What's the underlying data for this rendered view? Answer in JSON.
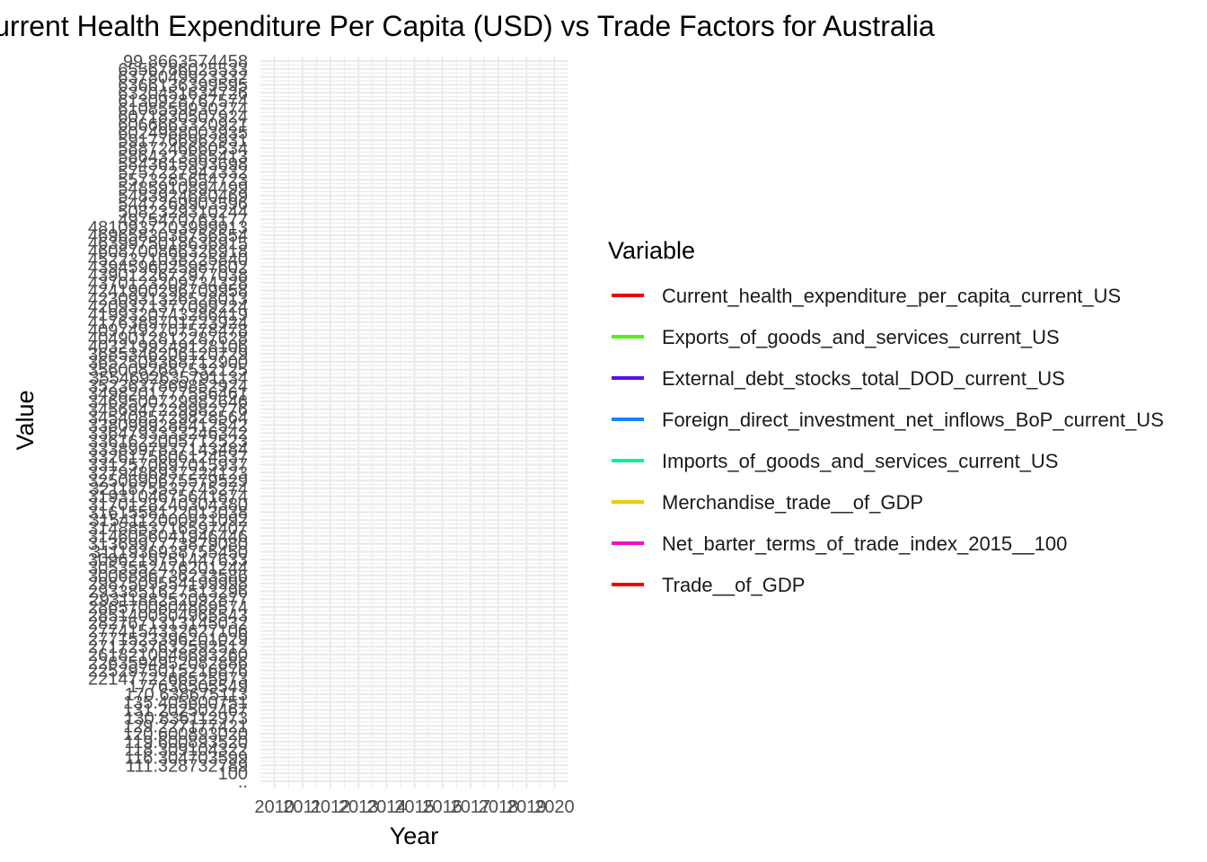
{
  "chart_data": {
    "type": "line",
    "title": "Current Health Expenditure Per Capita (USD) vs Trade Factors for Australia",
    "xlabel": "Year",
    "ylabel": "Value",
    "x": [
      "2010",
      "2011",
      "2012",
      "2013",
      "2014",
      "2015",
      "2016",
      "2017",
      "2018",
      "2019",
      "2020"
    ],
    "xlim": [
      2009.5,
      2020.5
    ],
    "y_tick_labels": [
      "..",
      "100",
      "111.328732789",
      "116.304703599",
      "118.309104322",
      "119.600893520",
      "120.600893020",
      "129.227177421",
      "130.836112973",
      "131.202502467",
      "135.405600751",
      "170.638675113",
      "177636505549",
      "2214772266525973",
      "2252975015216876",
      "2263594952082886",
      "2618210048693260",
      "2717237632592512",
      "2771523396201029",
      "2774154332627106",
      "2827671313145032",
      "2851400504965543",
      "2865700804869574",
      "2931188252092877",
      "2933851627513296",
      "2987509554199998",
      "3006896736233586",
      "3053552476201244",
      "3096219751447633",
      "3111936938755450",
      "3136997773879080",
      "3146056041946446",
      "3148853716597407",
      "3154112000921092",
      "3161558122013038",
      "3170128240304380",
      "3193104675641874",
      "3211875537745274",
      "3250690675579529",
      "3279486937224123",
      "3312570697015937",
      "3326175606124537",
      "3338997837143484",
      "3361622005712523",
      "3364793333246342",
      "3380999288412542",
      "3454085729828564",
      "3456947229982776",
      "3469500729982646",
      "3498201777556461",
      "3523637869852924",
      "3554692635791134",
      "3560082687532125",
      "3652508368712900",
      "3685346206120729",
      "4032199249128106",
      "4049012812287628",
      "4097492707578478",
      "4176389701723924",
      "4199320743286419",
      "4209371377099224",
      "4230931326528013",
      "4241900296709958",
      "4370123209734328",
      "4390122672977038",
      "4394596025987602",
      "4522371038225840",
      "4608700866326918",
      "4639975018636915",
      "4696583038756554",
      "4810937203999913",
      "4975470763177",
      "5082329310244",
      "5447269903596",
      "5483924680469",
      "5485910894499",
      "5573285654723",
      "5757227942332",
      "5843615993698",
      "5864323565413",
      "5887246660534",
      "5917766962931",
      "6024988003935",
      "6066663320921",
      "6071830507924",
      "6108559930274",
      "6130928767574",
      "6320451634726",
      "6366136399595",
      "6378049923332",
      "6556786025533",
      "99.8663574458"
    ],
    "legend_title": "Variable",
    "legend_position": "right",
    "grid": true,
    "series": [
      {
        "name": "Current_health_expenditure_per_capita_current_US",
        "color": "#ee0000"
      },
      {
        "name": "Exports_of_goods_and_services_current_US",
        "color": "#55ee11"
      },
      {
        "name": "External_debt_stocks_total_DOD_current_US",
        "color": "#5511ee"
      },
      {
        "name": "Foreign_direct_investment_net_inflows_BoP_current_US",
        "color": "#1188ff"
      },
      {
        "name": "Imports_of_goods_and_services_current_US",
        "color": "#11ee99"
      },
      {
        "name": "Merchandise_trade__of_GDP",
        "color": "#eecc00"
      },
      {
        "name": "Net_barter_terms_of_trade_index_2015__100",
        "color": "#ee11cc"
      },
      {
        "name": "Trade__of_GDP",
        "color": "#ee0000"
      }
    ]
  }
}
